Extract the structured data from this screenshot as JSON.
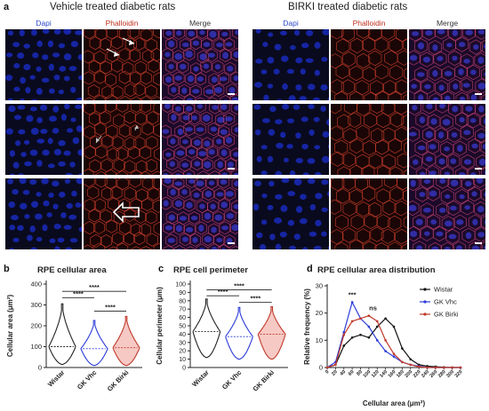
{
  "panel_a": {
    "letter": "a",
    "groups": [
      {
        "title": "Vehicle treated diabetic rats",
        "columns": [
          "Dapi",
          "Phalloidin",
          "Merge"
        ]
      },
      {
        "title": "BIRKI treated diabetic rats",
        "columns": [
          "Dapi",
          "Phalloidin",
          "Merge"
        ]
      }
    ],
    "colors": {
      "dapi": "#1b2fd0",
      "phalloidin": "#b3201a",
      "merge": "#7a2a8c"
    }
  },
  "chart_data": [
    {
      "letter": "b",
      "type": "violin",
      "title": "RPE cellular area",
      "ylabel": "Cellular area (μm²)",
      "categories": [
        "Wistar",
        "GK Vhc",
        "GK Birki"
      ],
      "ylim": [
        0,
        400
      ],
      "yticks": [
        0,
        100,
        200,
        300,
        400
      ],
      "median": [
        100,
        90,
        95
      ],
      "min": [
        15,
        10,
        10
      ],
      "max": [
        305,
        225,
        245
      ],
      "colors": [
        "#222222",
        "#2b3bd8",
        "#c0392b"
      ],
      "fill": [
        "#ffffff",
        "#ffffff",
        "#f6c9c4"
      ],
      "significance": [
        {
          "from": 0,
          "to": 1,
          "label": "****",
          "y": 335
        },
        {
          "from": 0,
          "to": 2,
          "label": "****",
          "y": 365
        },
        {
          "from": 1,
          "to": 2,
          "label": "****",
          "y": 270
        }
      ]
    },
    {
      "letter": "c",
      "type": "violin",
      "title": "RPE cell perimeter",
      "ylabel": "Cellular perimeter (μm)",
      "categories": [
        "Wistar",
        "GK Vhc",
        "GK Birki"
      ],
      "ylim": [
        0,
        100
      ],
      "yticks": [
        0,
        10,
        20,
        30,
        40,
        50,
        60,
        70,
        80,
        90,
        100
      ],
      "median": [
        43,
        37,
        40
      ],
      "min": [
        12,
        10,
        10
      ],
      "max": [
        82,
        72,
        73
      ],
      "colors": [
        "#222222",
        "#2b3bd8",
        "#c0392b"
      ],
      "fill": [
        "#ffffff",
        "#ffffff",
        "#f6c9c4"
      ],
      "significance": [
        {
          "from": 0,
          "to": 1,
          "label": "****",
          "y": 86
        },
        {
          "from": 0,
          "to": 2,
          "label": "****",
          "y": 93
        },
        {
          "from": 1,
          "to": 2,
          "label": "****",
          "y": 78
        }
      ]
    },
    {
      "letter": "d",
      "type": "line",
      "title": "RPE cellular area distribution",
      "ylabel": "Relative frequency (%)",
      "xlabel": "Cellular area (μm²)",
      "x": [
        0,
        20,
        40,
        60,
        80,
        100,
        120,
        140,
        160,
        180,
        200,
        220,
        240,
        260,
        280,
        300,
        320
      ],
      "xticks": [
        "0",
        "20",
        "40",
        "60",
        "80",
        "100",
        "120",
        "140",
        "160",
        "180",
        "200",
        "220",
        "240",
        "260",
        "280",
        "300",
        "320"
      ],
      "ylim": [
        0,
        30
      ],
      "yticks": [
        0,
        10,
        20,
        30
      ],
      "series": [
        {
          "name": "Wistar",
          "color": "#111111",
          "values": [
            0,
            1,
            8,
            11,
            12,
            11,
            15,
            18,
            15,
            7,
            3,
            1,
            0.5,
            0.3,
            0.1,
            0,
            0
          ]
        },
        {
          "name": "GK Vhc",
          "color": "#2b3bd8",
          "values": [
            0,
            2,
            13,
            24,
            18,
            15,
            10,
            6,
            4,
            2,
            1,
            0.5,
            0,
            0,
            0,
            0,
            0
          ]
        },
        {
          "name": "GK Birki",
          "color": "#c0392b",
          "values": [
            0,
            1,
            12,
            17,
            18,
            19,
            17,
            10,
            5,
            2,
            1,
            0.3,
            0,
            0,
            0,
            0,
            0
          ]
        }
      ],
      "annotations": [
        {
          "x": 60,
          "y": 26,
          "text": "***"
        },
        {
          "x": 110,
          "y": 21,
          "text": "ns"
        }
      ]
    }
  ]
}
